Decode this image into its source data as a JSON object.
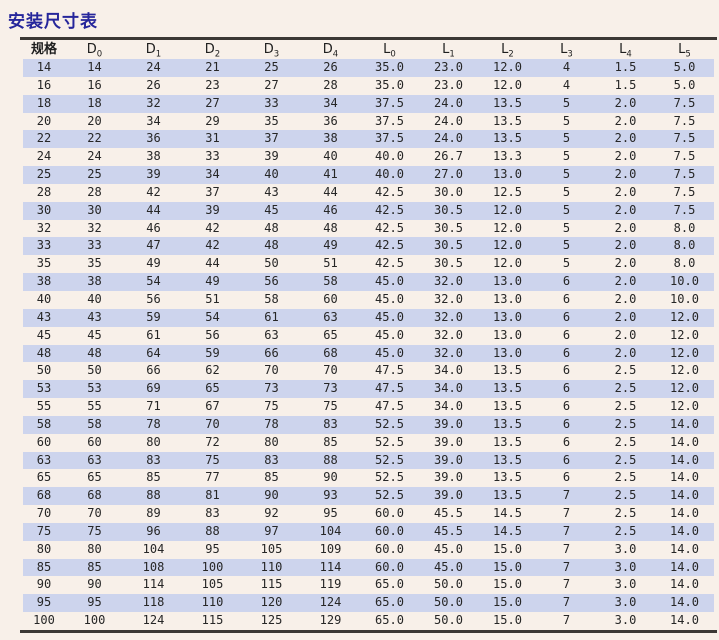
{
  "title": "安装尺寸表",
  "colors": {
    "title": "#26269b",
    "stripe": "#cdd4ed",
    "rule": "#3c3835",
    "text": "#262626",
    "page_bg": "#f8f0e9"
  },
  "table": {
    "headers": [
      {
        "base": "规格",
        "sub": ""
      },
      {
        "base": "D",
        "sub": "0"
      },
      {
        "base": "D",
        "sub": "1"
      },
      {
        "base": "D",
        "sub": "2"
      },
      {
        "base": "D",
        "sub": "3"
      },
      {
        "base": "D",
        "sub": "4"
      },
      {
        "base": "L",
        "sub": "0"
      },
      {
        "base": "L",
        "sub": "1"
      },
      {
        "base": "L",
        "sub": "2"
      },
      {
        "base": "L",
        "sub": "3"
      },
      {
        "base": "L",
        "sub": "4"
      },
      {
        "base": "L",
        "sub": "5"
      }
    ],
    "rows": [
      [
        "14",
        "14",
        "24",
        "21",
        "25",
        "26",
        "35.0",
        "23.0",
        "12.0",
        "4",
        "1.5",
        "5.0"
      ],
      [
        "16",
        "16",
        "26",
        "23",
        "27",
        "28",
        "35.0",
        "23.0",
        "12.0",
        "4",
        "1.5",
        "5.0"
      ],
      [
        "18",
        "18",
        "32",
        "27",
        "33",
        "34",
        "37.5",
        "24.0",
        "13.5",
        "5",
        "2.0",
        "7.5"
      ],
      [
        "20",
        "20",
        "34",
        "29",
        "35",
        "36",
        "37.5",
        "24.0",
        "13.5",
        "5",
        "2.0",
        "7.5"
      ],
      [
        "22",
        "22",
        "36",
        "31",
        "37",
        "38",
        "37.5",
        "24.0",
        "13.5",
        "5",
        "2.0",
        "7.5"
      ],
      [
        "24",
        "24",
        "38",
        "33",
        "39",
        "40",
        "40.0",
        "26.7",
        "13.3",
        "5",
        "2.0",
        "7.5"
      ],
      [
        "25",
        "25",
        "39",
        "34",
        "40",
        "41",
        "40.0",
        "27.0",
        "13.0",
        "5",
        "2.0",
        "7.5"
      ],
      [
        "28",
        "28",
        "42",
        "37",
        "43",
        "44",
        "42.5",
        "30.0",
        "12.5",
        "5",
        "2.0",
        "7.5"
      ],
      [
        "30",
        "30",
        "44",
        "39",
        "45",
        "46",
        "42.5",
        "30.5",
        "12.0",
        "5",
        "2.0",
        "7.5"
      ],
      [
        "32",
        "32",
        "46",
        "42",
        "48",
        "48",
        "42.5",
        "30.5",
        "12.0",
        "5",
        "2.0",
        "8.0"
      ],
      [
        "33",
        "33",
        "47",
        "42",
        "48",
        "49",
        "42.5",
        "30.5",
        "12.0",
        "5",
        "2.0",
        "8.0"
      ],
      [
        "35",
        "35",
        "49",
        "44",
        "50",
        "51",
        "42.5",
        "30.5",
        "12.0",
        "5",
        "2.0",
        "8.0"
      ],
      [
        "38",
        "38",
        "54",
        "49",
        "56",
        "58",
        "45.0",
        "32.0",
        "13.0",
        "6",
        "2.0",
        "10.0"
      ],
      [
        "40",
        "40",
        "56",
        "51",
        "58",
        "60",
        "45.0",
        "32.0",
        "13.0",
        "6",
        "2.0",
        "10.0"
      ],
      [
        "43",
        "43",
        "59",
        "54",
        "61",
        "63",
        "45.0",
        "32.0",
        "13.0",
        "6",
        "2.0",
        "12.0"
      ],
      [
        "45",
        "45",
        "61",
        "56",
        "63",
        "65",
        "45.0",
        "32.0",
        "13.0",
        "6",
        "2.0",
        "12.0"
      ],
      [
        "48",
        "48",
        "64",
        "59",
        "66",
        "68",
        "45.0",
        "32.0",
        "13.0",
        "6",
        "2.0",
        "12.0"
      ],
      [
        "50",
        "50",
        "66",
        "62",
        "70",
        "70",
        "47.5",
        "34.0",
        "13.5",
        "6",
        "2.5",
        "12.0"
      ],
      [
        "53",
        "53",
        "69",
        "65",
        "73",
        "73",
        "47.5",
        "34.0",
        "13.5",
        "6",
        "2.5",
        "12.0"
      ],
      [
        "55",
        "55",
        "71",
        "67",
        "75",
        "75",
        "47.5",
        "34.0",
        "13.5",
        "6",
        "2.5",
        "12.0"
      ],
      [
        "58",
        "58",
        "78",
        "70",
        "78",
        "83",
        "52.5",
        "39.0",
        "13.5",
        "6",
        "2.5",
        "14.0"
      ],
      [
        "60",
        "60",
        "80",
        "72",
        "80",
        "85",
        "52.5",
        "39.0",
        "13.5",
        "6",
        "2.5",
        "14.0"
      ],
      [
        "63",
        "63",
        "83",
        "75",
        "83",
        "88",
        "52.5",
        "39.0",
        "13.5",
        "6",
        "2.5",
        "14.0"
      ],
      [
        "65",
        "65",
        "85",
        "77",
        "85",
        "90",
        "52.5",
        "39.0",
        "13.5",
        "6",
        "2.5",
        "14.0"
      ],
      [
        "68",
        "68",
        "88",
        "81",
        "90",
        "93",
        "52.5",
        "39.0",
        "13.5",
        "7",
        "2.5",
        "14.0"
      ],
      [
        "70",
        "70",
        "89",
        "83",
        "92",
        "95",
        "60.0",
        "45.5",
        "14.5",
        "7",
        "2.5",
        "14.0"
      ],
      [
        "75",
        "75",
        "96",
        "88",
        "97",
        "104",
        "60.0",
        "45.5",
        "14.5",
        "7",
        "2.5",
        "14.0"
      ],
      [
        "80",
        "80",
        "104",
        "95",
        "105",
        "109",
        "60.0",
        "45.0",
        "15.0",
        "7",
        "3.0",
        "14.0"
      ],
      [
        "85",
        "85",
        "108",
        "100",
        "110",
        "114",
        "60.0",
        "45.0",
        "15.0",
        "7",
        "3.0",
        "14.0"
      ],
      [
        "90",
        "90",
        "114",
        "105",
        "115",
        "119",
        "65.0",
        "50.0",
        "15.0",
        "7",
        "3.0",
        "14.0"
      ],
      [
        "95",
        "95",
        "118",
        "110",
        "120",
        "124",
        "65.0",
        "50.0",
        "15.0",
        "7",
        "3.0",
        "14.0"
      ],
      [
        "100",
        "100",
        "124",
        "115",
        "125",
        "129",
        "65.0",
        "50.0",
        "15.0",
        "7",
        "3.0",
        "14.0"
      ]
    ]
  }
}
